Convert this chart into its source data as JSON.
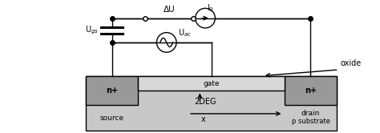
{
  "bg_color": "#ffffff",
  "device_color": "#c8c8c8",
  "nplus_color": "#999999",
  "gate_color": "#d8d8d8",
  "line_color": "#000000",
  "fig_width": 4.74,
  "fig_height": 1.66,
  "dpi": 100,
  "labels": {
    "nplus_left": "n+",
    "nplus_right": "n+",
    "source": "source",
    "drain": "drain",
    "p_substrate": "p substrate",
    "2DEG": "2DEG",
    "x": "x",
    "gate": "gate",
    "oxide": "oxide",
    "Ugs": "U$_{gs}$",
    "Uac": "U$_{ac}$",
    "deltaU": "ΔU",
    "I0": "I$_0$"
  }
}
